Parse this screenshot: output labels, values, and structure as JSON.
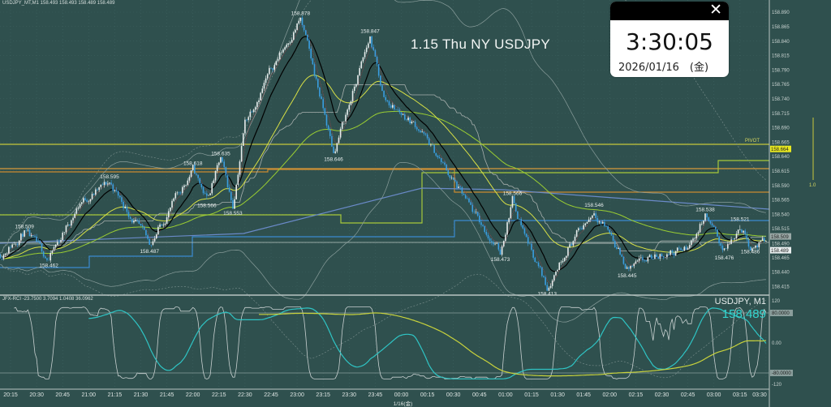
{
  "header": {
    "symbol_info": "USDJPY_MT,M1  158.493 158.493 158.489 158.489"
  },
  "title": "1.15 Thu NY USDJPY",
  "clock": {
    "time": "3:30:05",
    "date": "2026/01/16　(金)",
    "close_icon": "close-icon"
  },
  "symbol_panel": {
    "symbol": "USDJPY, M1",
    "last_price": "158.489"
  },
  "rci": {
    "label": "JFX-RCI -23.7500 3.7094 1.0408 36.0962",
    "axis_labels": [
      "120",
      "80.0000",
      "0.00",
      "-80.0000",
      "-120"
    ],
    "levels": [
      120,
      80,
      0,
      -80,
      -120
    ]
  },
  "pivot": {
    "label": "PIVOT",
    "price_label": "158.664",
    "price": 158.664,
    "scale_label": "1.0"
  },
  "colors": {
    "background": "#2f504e",
    "bull_candle": "#e6ecec",
    "bear_candle": "#3a9ee0",
    "ma_fast": "#000000",
    "ma_mid": "#d8e045",
    "ma_slow": "#9acd32",
    "pivot": "#c8c83c",
    "rci_short": "#c8d0d0",
    "rci_mid": "#2fc4c4",
    "rci_long": "#c8d23c",
    "last_price_text": "#35d6d0"
  },
  "chart_data": {
    "type": "candlestick",
    "timeframe": "M1",
    "ylim": [
      158.405,
      158.9
    ],
    "y_ticks": [
      "158.890",
      "158.865",
      "158.840",
      "158.815",
      "158.790",
      "158.765",
      "158.740",
      "158.715",
      "158.690",
      "158.665",
      "158.640",
      "158.615",
      "158.590",
      "158.565",
      "158.540",
      "158.515",
      "158.490",
      "158.465",
      "158.440",
      "158.415"
    ],
    "current_price_labels": [
      "158.509",
      "158.489"
    ],
    "x_ticks": [
      "20:15",
      "20:30",
      "20:45",
      "21:00",
      "21:15",
      "21:30",
      "21:45",
      "22:00",
      "22:15",
      "22:30",
      "22:45",
      "23:00",
      "23:15",
      "23:30",
      "23:45",
      "00:00",
      "00:15",
      "00:30",
      "00:45",
      "01:00",
      "01:15",
      "01:30",
      "01:45",
      "02:00",
      "02:15",
      "02:30",
      "02:45",
      "03:00",
      "03:15",
      "03:30"
    ],
    "date_label": "1/16(金)",
    "price_path": [
      {
        "time": "20:09",
        "price": 158.47
      },
      {
        "time": "20:23",
        "price": 158.509
      },
      {
        "time": "20:37",
        "price": 158.462
      },
      {
        "time": "20:55",
        "price": 158.56
      },
      {
        "time": "21:12",
        "price": 158.595
      },
      {
        "time": "21:35",
        "price": 158.487
      },
      {
        "time": "21:45",
        "price": 158.54
      },
      {
        "time": "22:00",
        "price": 158.618
      },
      {
        "time": "22:08",
        "price": 158.566
      },
      {
        "time": "22:16",
        "price": 158.635
      },
      {
        "time": "22:23",
        "price": 158.553
      },
      {
        "time": "22:30",
        "price": 158.7
      },
      {
        "time": "22:45",
        "price": 158.79
      },
      {
        "time": "23:02",
        "price": 158.878
      },
      {
        "time": "23:12",
        "price": 158.76
      },
      {
        "time": "23:21",
        "price": 158.646
      },
      {
        "time": "23:30",
        "price": 158.73
      },
      {
        "time": "23:42",
        "price": 158.847
      },
      {
        "time": "23:50",
        "price": 158.74
      },
      {
        "time": "00:10",
        "price": 158.69
      },
      {
        "time": "00:25",
        "price": 158.62
      },
      {
        "time": "00:42",
        "price": 158.54
      },
      {
        "time": "00:57",
        "price": 158.473
      },
      {
        "time": "01:04",
        "price": 158.566
      },
      {
        "time": "01:12",
        "price": 158.5
      },
      {
        "time": "01:24",
        "price": 158.413
      },
      {
        "time": "01:35",
        "price": 158.48
      },
      {
        "time": "01:51",
        "price": 158.546
      },
      {
        "time": "02:00",
        "price": 158.51
      },
      {
        "time": "02:10",
        "price": 158.445
      },
      {
        "time": "02:30",
        "price": 158.47
      },
      {
        "time": "02:45",
        "price": 158.48
      },
      {
        "time": "02:55",
        "price": 158.538
      },
      {
        "time": "03:06",
        "price": 158.476
      },
      {
        "time": "03:15",
        "price": 158.521
      },
      {
        "time": "03:21",
        "price": 158.486
      },
      {
        "time": "03:30",
        "price": 158.489
      }
    ],
    "annotations": [
      {
        "time": "20:23",
        "label": "158.509",
        "pos": "above"
      },
      {
        "time": "20:37",
        "label": "158.462",
        "pos": "below"
      },
      {
        "time": "21:12",
        "label": "158.595",
        "pos": "above"
      },
      {
        "time": "21:35",
        "label": "158.487",
        "pos": "below"
      },
      {
        "time": "22:00",
        "label": "158.618",
        "pos": "above"
      },
      {
        "time": "22:08",
        "label": "158.566",
        "pos": "below"
      },
      {
        "time": "22:16",
        "label": "158.635",
        "pos": "above"
      },
      {
        "time": "22:23",
        "label": "158.553",
        "pos": "below"
      },
      {
        "time": "23:02",
        "label": "158.878",
        "pos": "above"
      },
      {
        "time": "23:21",
        "label": "158.646",
        "pos": "below"
      },
      {
        "time": "23:42",
        "label": "158.847",
        "pos": "above"
      },
      {
        "time": "00:57",
        "label": "158.473",
        "pos": "below"
      },
      {
        "time": "01:04",
        "label": "158.566",
        "pos": "above"
      },
      {
        "time": "01:24",
        "label": "158.413",
        "pos": "below"
      },
      {
        "time": "01:51",
        "label": "158.546",
        "pos": "above"
      },
      {
        "time": "02:10",
        "label": "158.445",
        "pos": "below"
      },
      {
        "time": "02:55",
        "label": "158.538",
        "pos": "above"
      },
      {
        "time": "03:06",
        "label": "158.476",
        "pos": "below"
      },
      {
        "time": "03:15",
        "label": "158.521",
        "pos": "above"
      },
      {
        "time": "03:21",
        "label": "158.486",
        "pos": "below"
      }
    ],
    "grid": true
  }
}
